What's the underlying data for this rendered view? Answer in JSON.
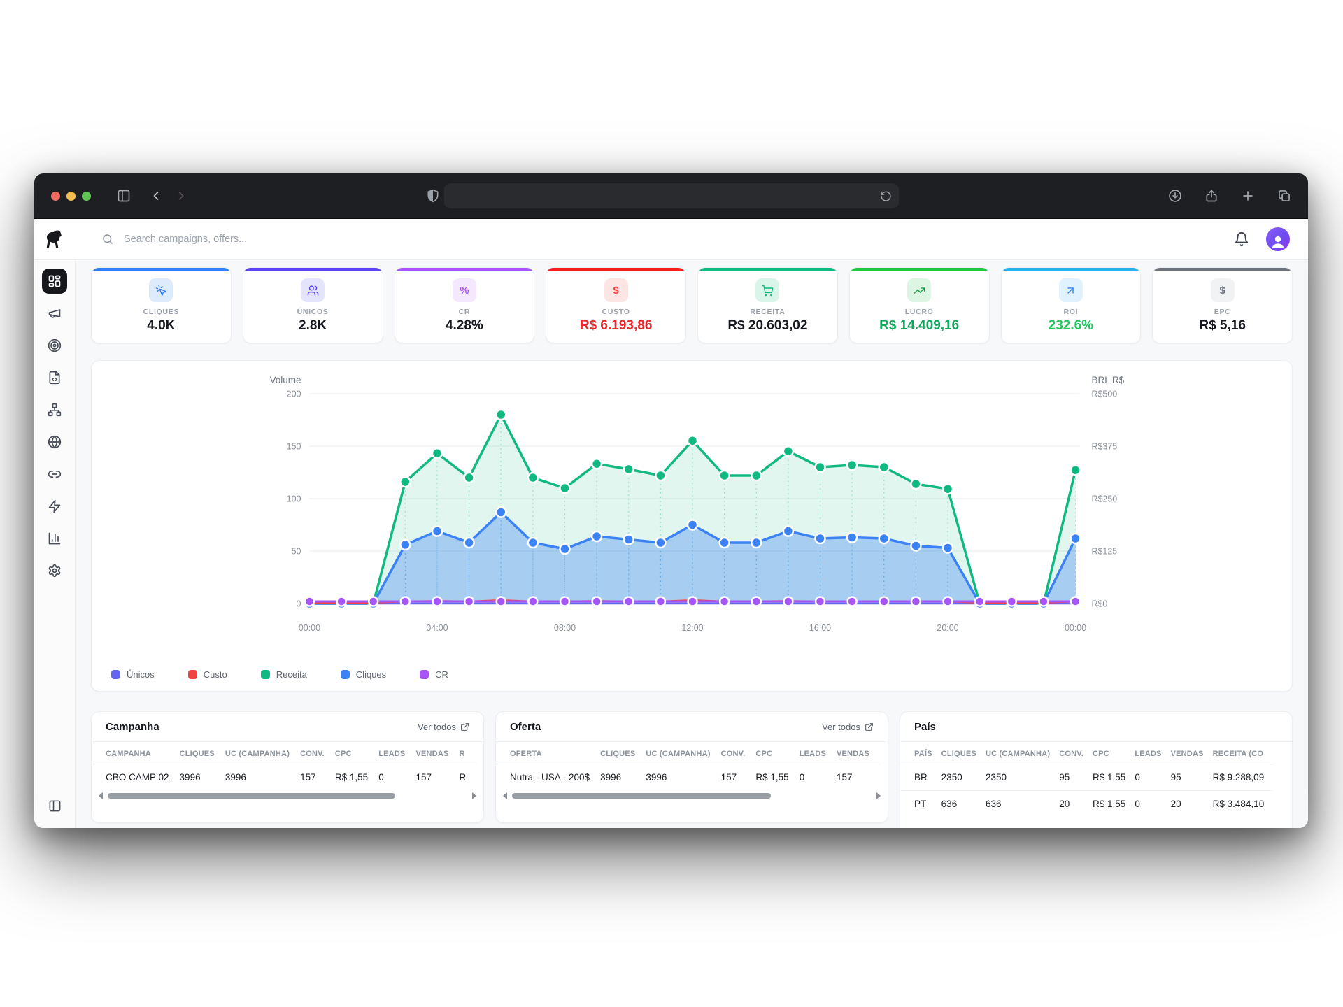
{
  "browser": {
    "traffic_lights": [
      "#ee6a5f",
      "#f5bd4f",
      "#61c454"
    ],
    "url_text": "",
    "icons": [
      "sidebar-toggle",
      "back",
      "forward",
      "shield",
      "reload",
      "download",
      "share",
      "new-tab",
      "tab-overview"
    ]
  },
  "topbar": {
    "search_placeholder": "Search campaigns, offers...",
    "icons": [
      "search",
      "bell",
      "avatar"
    ]
  },
  "sidebar": {
    "items": [
      {
        "icon": "dashboard",
        "active": true
      },
      {
        "icon": "megaphone",
        "active": false
      },
      {
        "icon": "target",
        "active": false
      },
      {
        "icon": "file-code",
        "active": false
      },
      {
        "icon": "network",
        "active": false
      },
      {
        "icon": "globe",
        "active": false
      },
      {
        "icon": "link",
        "active": false
      },
      {
        "icon": "zap",
        "active": false
      },
      {
        "icon": "bar-chart",
        "active": false
      },
      {
        "icon": "settings",
        "active": false
      }
    ],
    "footer_icon": "panel-left"
  },
  "stat_cards": [
    {
      "label": "CLIQUES",
      "value": "4.0K",
      "accent": "#2f80f5",
      "icon": "cursor-click",
      "icon_color": "#2f80f5",
      "icon_bg": "#ddebfd",
      "value_color": "#15181e"
    },
    {
      "label": "ÚNICOS",
      "value": "2.8K",
      "accent": "#5b45f0",
      "icon": "users",
      "icon_color": "#5b45f0",
      "icon_bg": "#e4e4fd",
      "value_color": "#15181e"
    },
    {
      "label": "CR",
      "value": "4.28%",
      "accent": "#a855f7",
      "icon": "percent",
      "icon_color": "#a855f7",
      "icon_bg": "#f4e8fe",
      "value_color": "#15181e"
    },
    {
      "label": "CUSTO",
      "value": "R$ 6.193,86",
      "accent": "#f02020",
      "icon": "dollar",
      "icon_color": "#ef4444",
      "icon_bg": "#fde5e3",
      "value_color": "#e8282c"
    },
    {
      "label": "RECEITA",
      "value": "R$ 20.603,02",
      "accent": "#10b981",
      "icon": "cart",
      "icon_color": "#10b981",
      "icon_bg": "#d9f5e9",
      "value_color": "#15181e"
    },
    {
      "label": "LUCRO",
      "value": "R$ 14.409,16",
      "accent": "#27c440",
      "icon": "trend-up",
      "icon_color": "#16a34a",
      "icon_bg": "#ddf6e4",
      "value_color": "#10a85c"
    },
    {
      "label": "ROI",
      "value": "232.6%",
      "accent": "#29b1ef",
      "icon": "arrow-up-right",
      "icon_color": "#2f80f5",
      "icon_bg": "#dff2fd",
      "value_color": "#22c55e"
    },
    {
      "label": "EPC",
      "value": "R$ 5,16",
      "accent": "#6e747e",
      "icon": "dollar",
      "icon_color": "#6b7280",
      "icon_bg": "#f1f2f4",
      "value_color": "#15181e"
    }
  ],
  "chart_data": {
    "type": "area",
    "x": [
      "00:00",
      "01:00",
      "02:00",
      "03:00",
      "04:00",
      "05:00",
      "06:00",
      "07:00",
      "08:00",
      "09:00",
      "10:00",
      "11:00",
      "12:00",
      "13:00",
      "14:00",
      "15:00",
      "16:00",
      "17:00",
      "18:00",
      "19:00",
      "20:00",
      "21:00",
      "22:00",
      "23:00",
      "00:00"
    ],
    "x_tick_labels": [
      "00:00",
      "04:00",
      "08:00",
      "12:00",
      "16:00",
      "20:00",
      "00:00"
    ],
    "left_axis": {
      "title": "Volume",
      "ticks": [
        200,
        150,
        100,
        50,
        0
      ],
      "max": 200
    },
    "right_axis": {
      "title": "BRL R$",
      "ticks": [
        "R$500",
        "R$375",
        "R$250",
        "R$125",
        "R$0"
      ],
      "max": 500
    },
    "grid": true,
    "legend_position": "bottom-left",
    "series": [
      {
        "name": "Únicos",
        "color": "#6366f1",
        "axis": "left",
        "fill": false,
        "values": [
          0,
          0,
          0,
          0,
          0,
          0,
          0,
          0,
          0,
          0,
          0,
          0,
          0,
          0,
          0,
          0,
          0,
          0,
          0,
          0,
          0,
          0,
          0,
          0,
          0
        ]
      },
      {
        "name": "Custo",
        "color": "#ef4444",
        "axis": "right",
        "fill": false,
        "values": [
          2,
          2,
          2,
          5,
          6,
          5,
          8,
          5,
          5,
          6,
          5,
          5,
          8,
          5,
          5,
          6,
          5,
          5,
          5,
          5,
          5,
          2,
          2,
          2,
          5
        ]
      },
      {
        "name": "Receita",
        "color": "#10b981",
        "axis": "right",
        "fill": true,
        "fill_color": "rgba(16,185,129,0.13)",
        "values": [
          0,
          0,
          0,
          290,
          358,
          300,
          450,
          300,
          275,
          333,
          320,
          305,
          388,
          305,
          305,
          363,
          325,
          330,
          325,
          285,
          273,
          0,
          0,
          0,
          318
        ]
      },
      {
        "name": "Cliques",
        "color": "#3b82f6",
        "axis": "left",
        "fill": true,
        "fill_color": "rgba(59,130,246,0.35)",
        "values": [
          0,
          0,
          0,
          56,
          69,
          58,
          87,
          58,
          52,
          64,
          61,
          58,
          75,
          58,
          58,
          69,
          62,
          63,
          62,
          55,
          53,
          0,
          0,
          0,
          62
        ]
      },
      {
        "name": "CR",
        "color": "#a855f7",
        "axis": "left",
        "fill": false,
        "values": [
          2,
          2,
          2,
          2,
          2,
          2,
          2,
          2,
          2,
          2,
          2,
          2,
          2,
          2,
          2,
          2,
          2,
          2,
          2,
          2,
          2,
          2,
          2,
          2,
          2
        ]
      }
    ],
    "render_order": [
      "Receita",
      "Cliques",
      "Únicos",
      "Custo",
      "CR"
    ]
  },
  "tables": [
    {
      "title": "Campanha",
      "link_label": "Ver todos",
      "columns": [
        "CAMPANHA",
        "CLIQUES",
        "UC (CAMPANHA)",
        "CONV.",
        "CPC",
        "LEADS",
        "VENDAS",
        "R"
      ],
      "rows": [
        [
          "CBO CAMP 02",
          "3996",
          "3996",
          "157",
          "R$ 1,55",
          "0",
          "157",
          "R"
        ]
      ],
      "scrollbar": true,
      "thumb_pct": 80
    },
    {
      "title": "Oferta",
      "link_label": "Ver todos",
      "columns": [
        "OFERTA",
        "CLIQUES",
        "UC (CAMPANHA)",
        "CONV.",
        "CPC",
        "LEADS",
        "VENDAS"
      ],
      "rows": [
        [
          "Nutra - USA - 200$",
          "3996",
          "3996",
          "157",
          "R$ 1,55",
          "0",
          "157"
        ]
      ],
      "scrollbar": true,
      "thumb_pct": 72
    },
    {
      "title": "País",
      "link_label": "",
      "columns": [
        "PAÍS",
        "CLIQUES",
        "UC (CAMPANHA)",
        "CONV.",
        "CPC",
        "LEADS",
        "VENDAS",
        "RECEITA (CO"
      ],
      "rows": [
        [
          "BR",
          "2350",
          "2350",
          "95",
          "R$ 1,55",
          "0",
          "95",
          "R$ 9.288,09"
        ],
        [
          "PT",
          "636",
          "636",
          "20",
          "R$ 1,55",
          "0",
          "20",
          "R$ 3.484,10"
        ]
      ],
      "scrollbar": false,
      "thumb_pct": 0
    }
  ]
}
